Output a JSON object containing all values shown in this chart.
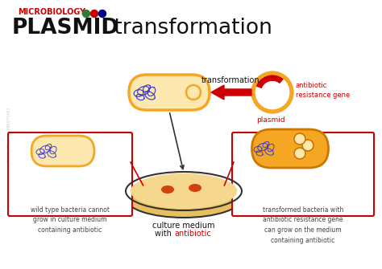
{
  "title_microbiology": "MICROBIOLOGY",
  "title_main_bold": "PLASMID",
  "title_main_regular": " transformation",
  "dot_colors": [
    "#2e7d32",
    "#cc0000",
    "#00008b"
  ],
  "bg_color": "#ffffff",
  "bacterium_fill_light": "#fde8b0",
  "bacterium_stroke": "#f5a623",
  "bacterium_fill_dark": "#f5a623",
  "dna_color": "#3333cc",
  "arrow_color": "#cc0000",
  "box_color": "#cc0000",
  "petri_fill": "#f5d78e",
  "petri_rim": "#e8c060",
  "petri_stroke": "#333333",
  "colony_color": "#cc3300",
  "plasmid_ring_color": "#f5a623",
  "plasmid_red_arc": "#cc0000",
  "label_transformation": "transformation",
  "label_antibiotic_gene": "antibiotic\nresistance gene",
  "label_plasmid": "plasmid",
  "label_wild": "wild type bacteria cannot\ngrow in culture medium\ncontaining antibiotic",
  "label_transformed": "transformed bacteria with\nantibiotic resistance gene\ncan grow on the medium\ncontaining antibiotic",
  "label_culture_line1": "culture medium",
  "label_culture_line2": "with ",
  "label_antibiotic": "antibiotic",
  "font_color_red": "#cc0000",
  "font_color_black": "#111111",
  "font_color_gray": "#444444"
}
